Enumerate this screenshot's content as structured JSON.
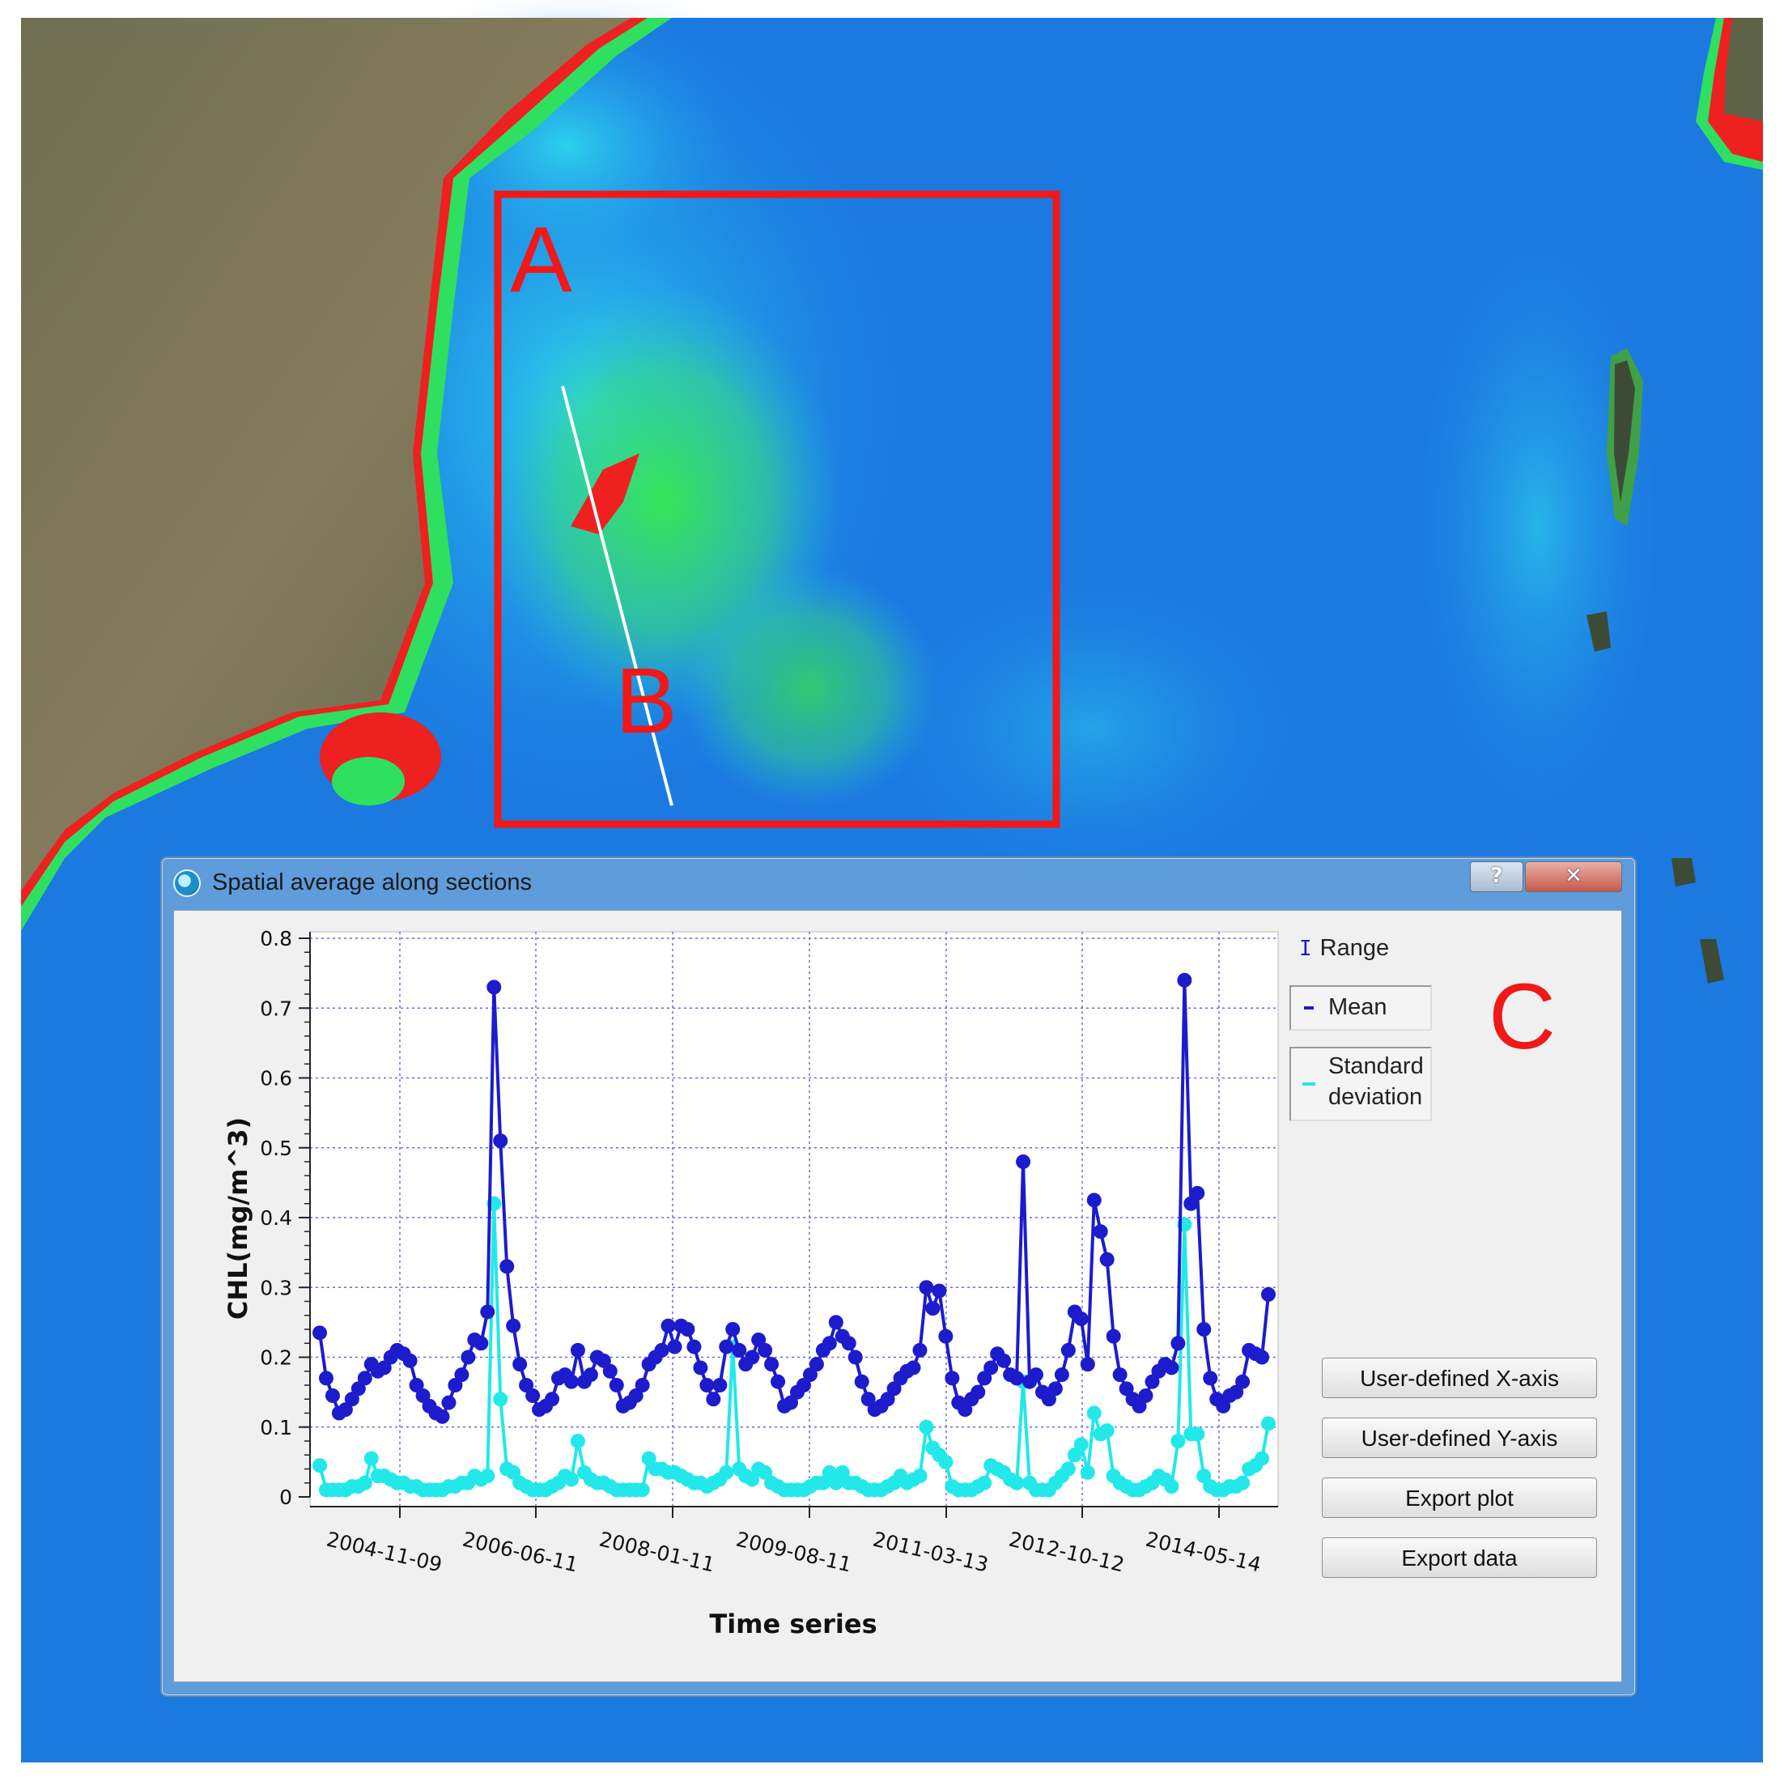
{
  "annotations": {
    "label_a": "A",
    "label_b": "B",
    "label_c": "C"
  },
  "dialog": {
    "title": "Spatial average along sections",
    "help_label": "?",
    "close_label": "✕",
    "buttons": {
      "x_axis": "User-defined X-axis",
      "y_axis": "User-defined Y-axis",
      "export_plot": "Export plot",
      "export_data": "Export data"
    }
  },
  "legend": {
    "range": "Range",
    "mean": "Mean",
    "sd_line1": "Standard",
    "sd_line2": "deviation"
  },
  "colors": {
    "mean": "#1c1ccc",
    "sd": "#22e8ea",
    "grid": "#6a6ae0",
    "annotation": "#f01818"
  },
  "chart_data": {
    "type": "line",
    "xlabel": "Time series",
    "ylabel": "CHL(mg/m^3)",
    "ylim": [
      0,
      0.8
    ],
    "yticks": [
      "0",
      "0.1",
      "0.2",
      "0.3",
      "0.4",
      "0.5",
      "0.6",
      "0.7",
      "0.8"
    ],
    "xticks": [
      "2004-11-09",
      "2006-06-11",
      "2008-01-11",
      "2009-08-11",
      "2011-03-13",
      "2012-10-12",
      "2014-05-14"
    ],
    "grid": true,
    "series": [
      {
        "name": "Mean",
        "values": [
          0.235,
          0.17,
          0.145,
          0.12,
          0.125,
          0.14,
          0.155,
          0.17,
          0.19,
          0.18,
          0.185,
          0.2,
          0.21,
          0.205,
          0.195,
          0.16,
          0.145,
          0.13,
          0.12,
          0.115,
          0.135,
          0.16,
          0.175,
          0.2,
          0.225,
          0.22,
          0.265,
          0.73,
          0.51,
          0.33,
          0.245,
          0.19,
          0.16,
          0.145,
          0.125,
          0.13,
          0.14,
          0.17,
          0.175,
          0.165,
          0.21,
          0.165,
          0.175,
          0.2,
          0.195,
          0.18,
          0.16,
          0.13,
          0.135,
          0.145,
          0.16,
          0.19,
          0.2,
          0.21,
          0.245,
          0.215,
          0.245,
          0.24,
          0.215,
          0.185,
          0.16,
          0.14,
          0.16,
          0.215,
          0.24,
          0.21,
          0.19,
          0.2,
          0.225,
          0.21,
          0.19,
          0.165,
          0.13,
          0.135,
          0.15,
          0.16,
          0.175,
          0.19,
          0.21,
          0.22,
          0.25,
          0.23,
          0.22,
          0.2,
          0.165,
          0.14,
          0.125,
          0.13,
          0.14,
          0.155,
          0.17,
          0.18,
          0.185,
          0.21,
          0.3,
          0.27,
          0.295,
          0.23,
          0.17,
          0.135,
          0.125,
          0.14,
          0.15,
          0.17,
          0.185,
          0.205,
          0.195,
          0.175,
          0.17,
          0.48,
          0.165,
          0.175,
          0.15,
          0.14,
          0.155,
          0.175,
          0.21,
          0.265,
          0.255,
          0.19,
          0.425,
          0.38,
          0.34,
          0.23,
          0.175,
          0.155,
          0.14,
          0.13,
          0.145,
          0.165,
          0.18,
          0.19,
          0.185,
          0.22,
          0.74,
          0.42,
          0.435,
          0.24,
          0.17,
          0.14,
          0.13,
          0.145,
          0.15,
          0.165,
          0.21,
          0.205,
          0.2,
          0.29
        ]
      },
      {
        "name": "Standard deviation",
        "values": [
          0.045,
          0.01,
          0.01,
          0.01,
          0.01,
          0.015,
          0.015,
          0.02,
          0.055,
          0.03,
          0.03,
          0.025,
          0.02,
          0.02,
          0.015,
          0.015,
          0.01,
          0.01,
          0.01,
          0.01,
          0.015,
          0.015,
          0.02,
          0.02,
          0.03,
          0.025,
          0.03,
          0.42,
          0.14,
          0.04,
          0.035,
          0.02,
          0.015,
          0.01,
          0.01,
          0.01,
          0.015,
          0.02,
          0.03,
          0.025,
          0.08,
          0.035,
          0.025,
          0.02,
          0.02,
          0.015,
          0.01,
          0.01,
          0.01,
          0.01,
          0.01,
          0.055,
          0.04,
          0.04,
          0.035,
          0.035,
          0.03,
          0.025,
          0.02,
          0.02,
          0.015,
          0.02,
          0.025,
          0.035,
          0.215,
          0.04,
          0.03,
          0.025,
          0.04,
          0.035,
          0.02,
          0.015,
          0.01,
          0.01,
          0.01,
          0.01,
          0.015,
          0.02,
          0.02,
          0.035,
          0.02,
          0.035,
          0.02,
          0.02,
          0.015,
          0.01,
          0.01,
          0.01,
          0.015,
          0.02,
          0.03,
          0.02,
          0.025,
          0.03,
          0.1,
          0.07,
          0.06,
          0.05,
          0.015,
          0.01,
          0.01,
          0.01,
          0.015,
          0.02,
          0.045,
          0.04,
          0.035,
          0.025,
          0.02,
          0.165,
          0.02,
          0.01,
          0.01,
          0.01,
          0.02,
          0.03,
          0.04,
          0.06,
          0.075,
          0.035,
          0.12,
          0.09,
          0.095,
          0.03,
          0.02,
          0.015,
          0.01,
          0.01,
          0.015,
          0.02,
          0.03,
          0.025,
          0.015,
          0.08,
          0.39,
          0.09,
          0.09,
          0.03,
          0.015,
          0.01,
          0.01,
          0.015,
          0.015,
          0.02,
          0.04,
          0.045,
          0.055,
          0.105
        ]
      }
    ]
  }
}
